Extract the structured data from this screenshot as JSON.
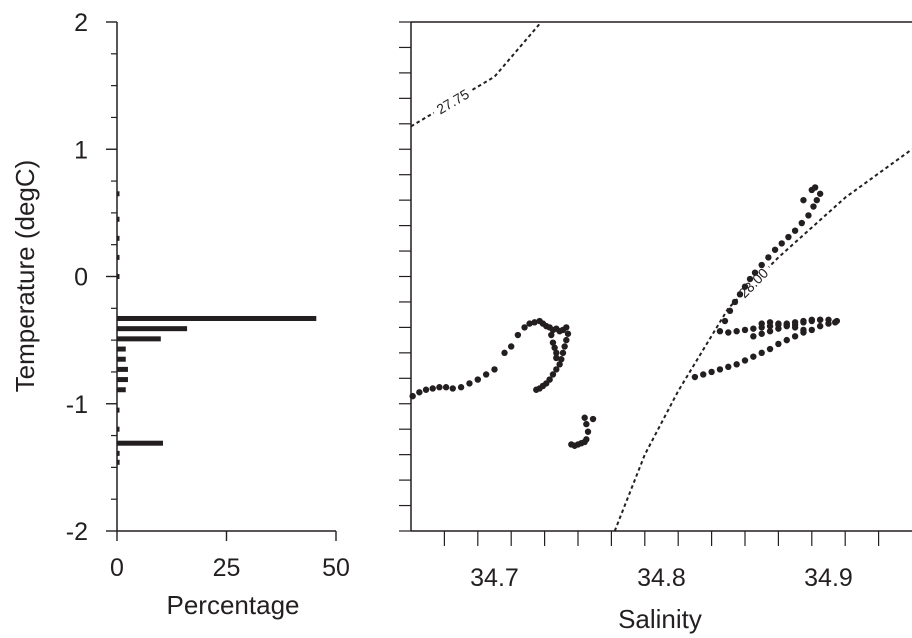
{
  "chart_data": [
    {
      "type": "bar",
      "orientation": "horizontal",
      "xlabel": "Percentage",
      "ylabel": "Temperature (degC)",
      "xlim": [
        0,
        50
      ],
      "ylim": [
        -2,
        2
      ],
      "x_ticks": [
        "0",
        "25",
        "50"
      ],
      "y_ticks": [
        "-2",
        "-1",
        "0",
        "1",
        "2"
      ],
      "bars": [
        {
          "temperature": 0.65,
          "percentage": 0.3
        },
        {
          "temperature": 0.45,
          "percentage": 0.3
        },
        {
          "temperature": 0.3,
          "percentage": 0.3
        },
        {
          "temperature": 0.15,
          "percentage": 0.3
        },
        {
          "temperature": 0.0,
          "percentage": 0.3
        },
        {
          "temperature": -0.33,
          "percentage": 45.5
        },
        {
          "temperature": -0.41,
          "percentage": 16
        },
        {
          "temperature": -0.49,
          "percentage": 10
        },
        {
          "temperature": -0.57,
          "percentage": 2
        },
        {
          "temperature": -0.65,
          "percentage": 2
        },
        {
          "temperature": -0.73,
          "percentage": 2.5
        },
        {
          "temperature": -0.81,
          "percentage": 2.5
        },
        {
          "temperature": -0.89,
          "percentage": 2
        },
        {
          "temperature": -1.05,
          "percentage": 0.5
        },
        {
          "temperature": -1.2,
          "percentage": 0.4
        },
        {
          "temperature": -1.31,
          "percentage": 10.5
        },
        {
          "temperature": -1.39,
          "percentage": 0.6
        },
        {
          "temperature": -1.46,
          "percentage": 0.6
        }
      ]
    },
    {
      "type": "scatter",
      "xlabel": "Salinity",
      "ylabel": "",
      "xlim": [
        34.65,
        34.95
      ],
      "ylim": [
        -2,
        2
      ],
      "x_ticks": [
        "34.7",
        "34.8",
        "34.9"
      ],
      "contours": [
        {
          "label": "27.75",
          "points": [
            [
              34.65,
              1.18
            ],
            [
              34.7,
              1.57
            ],
            [
              34.728,
              2.0
            ]
          ]
        },
        {
          "label": "28.00",
          "points": [
            [
              34.772,
              -2.0
            ],
            [
              34.79,
              -1.4
            ],
            [
              34.81,
              -0.9
            ],
            [
              34.84,
              -0.25
            ],
            [
              34.87,
              0.15
            ],
            [
              34.91,
              0.62
            ],
            [
              34.95,
              1.0
            ]
          ]
        }
      ],
      "series": [
        {
          "values": [
            [
              34.651,
              -0.94
            ],
            [
              34.655,
              -0.91
            ],
            [
              34.659,
              -0.89
            ],
            [
              34.663,
              -0.88
            ],
            [
              34.667,
              -0.87
            ],
            [
              34.671,
              -0.87
            ],
            [
              34.675,
              -0.88
            ],
            [
              34.68,
              -0.87
            ],
            [
              34.685,
              -0.84
            ],
            [
              34.69,
              -0.81
            ],
            [
              34.695,
              -0.77
            ],
            [
              34.7,
              -0.73
            ],
            [
              34.706,
              -0.6
            ],
            [
              34.71,
              -0.55
            ],
            [
              34.714,
              -0.46
            ],
            [
              34.718,
              -0.4
            ],
            [
              34.721,
              -0.37
            ],
            [
              34.724,
              -0.36
            ],
            [
              34.727,
              -0.35
            ],
            [
              34.729,
              -0.37
            ],
            [
              34.731,
              -0.39
            ],
            [
              34.733,
              -0.4
            ],
            [
              34.735,
              -0.42
            ],
            [
              34.737,
              -0.41
            ],
            [
              34.739,
              -0.43
            ],
            [
              34.741,
              -0.42
            ],
            [
              34.743,
              -0.4
            ],
            [
              34.744,
              -0.45
            ],
            [
              34.743,
              -0.5
            ],
            [
              34.742,
              -0.55
            ],
            [
              34.741,
              -0.6
            ],
            [
              34.74,
              -0.65
            ],
            [
              34.739,
              -0.69
            ],
            [
              34.737,
              -0.73
            ],
            [
              34.735,
              -0.77
            ],
            [
              34.733,
              -0.81
            ],
            [
              34.731,
              -0.84
            ],
            [
              34.729,
              -0.86
            ],
            [
              34.727,
              -0.88
            ],
            [
              34.725,
              -0.89
            ],
            [
              34.734,
              -0.46
            ],
            [
              34.735,
              -0.52
            ],
            [
              34.736,
              -0.56
            ],
            [
              34.737,
              -0.6
            ],
            [
              34.737,
              -0.64
            ],
            [
              34.746,
              -1.32
            ],
            [
              34.748,
              -1.33
            ],
            [
              34.75,
              -1.32
            ],
            [
              34.752,
              -1.31
            ],
            [
              34.754,
              -1.3
            ],
            [
              34.755,
              -1.28
            ],
            [
              34.756,
              -1.22
            ],
            [
              34.755,
              -1.16
            ],
            [
              34.754,
              -1.11
            ],
            [
              34.759,
              -1.12
            ],
            [
              34.82,
              -0.79
            ],
            [
              34.825,
              -0.77
            ],
            [
              34.83,
              -0.75
            ],
            [
              34.835,
              -0.73
            ],
            [
              34.84,
              -0.71
            ],
            [
              34.845,
              -0.69
            ],
            [
              34.85,
              -0.66
            ],
            [
              34.855,
              -0.63
            ],
            [
              34.86,
              -0.6
            ],
            [
              34.865,
              -0.57
            ],
            [
              34.87,
              -0.53
            ],
            [
              34.875,
              -0.5
            ],
            [
              34.88,
              -0.47
            ],
            [
              34.885,
              -0.44
            ],
            [
              34.89,
              -0.42
            ],
            [
              34.895,
              -0.39
            ],
            [
              34.9,
              -0.37
            ],
            [
              34.904,
              -0.36
            ],
            [
              34.84,
              -0.44
            ],
            [
              34.845,
              -0.43
            ],
            [
              34.85,
              -0.42
            ],
            [
              34.855,
              -0.41
            ],
            [
              34.86,
              -0.4
            ],
            [
              34.865,
              -0.39
            ],
            [
              34.87,
              -0.38
            ],
            [
              34.875,
              -0.37
            ],
            [
              34.88,
              -0.36
            ],
            [
              34.885,
              -0.35
            ],
            [
              34.89,
              -0.34
            ],
            [
              34.895,
              -0.34
            ],
            [
              34.9,
              -0.34
            ],
            [
              34.905,
              -0.35
            ],
            [
              34.855,
              -0.47
            ],
            [
              34.86,
              -0.45
            ],
            [
              34.865,
              -0.43
            ],
            [
              34.87,
              -0.41
            ],
            [
              34.875,
              -0.39
            ],
            [
              34.88,
              -0.38
            ],
            [
              34.885,
              -0.36
            ],
            [
              34.89,
              -0.35
            ],
            [
              34.895,
              -0.34
            ],
            [
              34.86,
              -0.37
            ],
            [
              34.865,
              -0.36
            ],
            [
              34.87,
              -0.37
            ],
            [
              34.875,
              -0.38
            ],
            [
              34.88,
              -0.4
            ],
            [
              34.885,
              -0.42
            ],
            [
              34.835,
              -0.43
            ],
            [
              34.838,
              -0.35
            ],
            [
              34.841,
              -0.27
            ],
            [
              34.844,
              -0.2
            ],
            [
              34.847,
              -0.14
            ],
            [
              34.85,
              -0.08
            ],
            [
              34.853,
              -0.02
            ],
            [
              34.856,
              0.03
            ],
            [
              34.86,
              0.09
            ],
            [
              34.864,
              0.15
            ],
            [
              34.868,
              0.21
            ],
            [
              34.872,
              0.26
            ],
            [
              34.876,
              0.31
            ],
            [
              34.88,
              0.36
            ],
            [
              34.884,
              0.42
            ],
            [
              34.888,
              0.48
            ],
            [
              34.891,
              0.55
            ],
            [
              34.893,
              0.6
            ],
            [
              34.895,
              0.65
            ],
            [
              34.892,
              0.7
            ],
            [
              34.89,
              0.68
            ],
            [
              34.885,
              0.6
            ]
          ]
        }
      ]
    }
  ]
}
